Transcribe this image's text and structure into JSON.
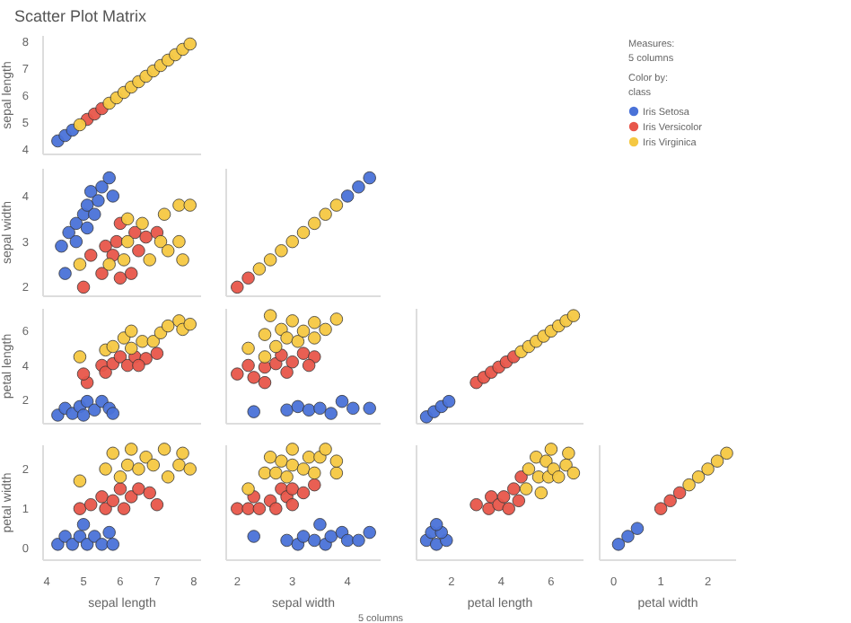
{
  "chart_data": [
    {
      "type": "scatter",
      "title": "Scatter Plot Matrix",
      "ylabel": "sepal length",
      "legend": "right",
      "marker": "circle",
      "tick_labels": "y",
      "annotations": [
        "Measures:",
        "5 columns",
        "Color by:",
        "class"
      ],
      "xlim": [
        3.9,
        8.2
      ],
      "ylim": [
        3.8,
        8.2
      ],
      "yticks": [
        4,
        5,
        6,
        7,
        8
      ],
      "series": [
        {
          "name": "Iris Setosa",
          "color": "#4a72d8",
          "x": [
            4.3,
            4.5,
            4.7
          ],
          "values": [
            4.3,
            4.5,
            4.7
          ]
        },
        {
          "name": "Iris Versicolor",
          "color": "#e8564a",
          "x": [
            5.1,
            5.3,
            5.5
          ],
          "values": [
            5.1,
            5.3,
            5.5
          ]
        },
        {
          "name": "Iris Virginica",
          "color": "#f5c842",
          "x": [
            4.9,
            5.7,
            5.9,
            6.1,
            6.3,
            6.5,
            6.7,
            6.9,
            7.1,
            7.3,
            7.5,
            7.7,
            7.9
          ],
          "values": [
            4.9,
            5.7,
            5.9,
            6.1,
            6.3,
            6.5,
            6.7,
            6.9,
            7.1,
            7.3,
            7.5,
            7.7,
            7.9
          ]
        }
      ]
    },
    {
      "type": "scatter",
      "ylabel": "sepal width",
      "marker": "circle",
      "tick_labels": "y",
      "xlim": [
        3.9,
        8.2
      ],
      "ylim": [
        1.8,
        4.6
      ],
      "yticks": [
        2,
        3,
        4
      ],
      "series": [
        {
          "color": "#4a72d8",
          "x": [
            4.4,
            4.6,
            4.8,
            4.8,
            5.0,
            5.1,
            5.2,
            5.4,
            5.5,
            5.7,
            5.8,
            4.5,
            5.1,
            5.3
          ],
          "values": [
            2.9,
            3.2,
            3.0,
            3.4,
            3.6,
            3.3,
            4.1,
            3.9,
            4.2,
            4.4,
            4.0,
            2.3,
            3.8,
            3.6
          ]
        },
        {
          "color": "#e8564a",
          "x": [
            5.0,
            5.2,
            5.5,
            5.6,
            5.9,
            6.0,
            6.3,
            6.4,
            6.7,
            7.0,
            6.5,
            5.8,
            6.0
          ],
          "values": [
            2.0,
            2.7,
            2.3,
            2.9,
            3.0,
            2.2,
            2.3,
            3.2,
            3.1,
            3.2,
            2.8,
            2.7,
            3.4
          ]
        },
        {
          "color": "#f5c842",
          "x": [
            4.9,
            5.7,
            6.1,
            6.2,
            6.2,
            6.6,
            6.8,
            7.1,
            7.3,
            7.2,
            7.6,
            7.7,
            7.6,
            7.9
          ],
          "values": [
            2.5,
            2.5,
            2.6,
            3.0,
            3.5,
            3.4,
            2.6,
            3.0,
            2.8,
            3.6,
            3.0,
            2.6,
            3.8,
            3.8
          ]
        }
      ]
    },
    {
      "type": "scatter",
      "marker": "circle",
      "tick_labels": false,
      "xlim": [
        1.8,
        4.6
      ],
      "ylim": [
        1.8,
        4.6
      ],
      "series": [
        {
          "color": "#4a72d8",
          "x": [
            4.0,
            4.2,
            4.4
          ],
          "values": [
            4.0,
            4.2,
            4.4
          ]
        },
        {
          "color": "#e8564a",
          "x": [
            2.0,
            2.2
          ],
          "values": [
            2.0,
            2.2
          ]
        },
        {
          "color": "#f5c842",
          "x": [
            2.4,
            2.6,
            2.8,
            3.0,
            3.2,
            3.4,
            3.6,
            3.8
          ],
          "values": [
            2.4,
            2.6,
            2.8,
            3.0,
            3.2,
            3.4,
            3.6,
            3.8
          ]
        }
      ]
    },
    {
      "type": "scatter",
      "ylabel": "petal length",
      "marker": "circle",
      "tick_labels": "y",
      "xlim": [
        3.9,
        8.2
      ],
      "ylim": [
        0.6,
        7.3
      ],
      "yticks": [
        2,
        4,
        6
      ],
      "series": [
        {
          "color": "#4a72d8",
          "x": [
            4.3,
            4.5,
            4.7,
            4.9,
            5.0,
            5.1,
            5.3,
            5.5,
            5.7,
            5.8
          ],
          "values": [
            1.1,
            1.5,
            1.2,
            1.6,
            1.1,
            1.9,
            1.4,
            1.9,
            1.5,
            1.2
          ]
        },
        {
          "color": "#e8564a",
          "x": [
            5.1,
            5.0,
            5.5,
            5.6,
            5.8,
            6.0,
            6.2,
            6.4,
            6.7,
            7.0,
            6.5
          ],
          "values": [
            3.0,
            3.5,
            4.0,
            3.6,
            4.1,
            4.5,
            4.0,
            4.5,
            4.4,
            4.7,
            4.0
          ]
        },
        {
          "color": "#f5c842",
          "x": [
            4.9,
            5.6,
            5.8,
            6.1,
            6.3,
            6.3,
            6.6,
            6.9,
            7.1,
            7.3,
            7.6,
            7.7,
            7.9
          ],
          "values": [
            4.5,
            4.9,
            5.1,
            5.6,
            5.0,
            6.0,
            5.4,
            5.4,
            5.9,
            6.3,
            6.6,
            6.1,
            6.4
          ]
        }
      ]
    },
    {
      "type": "scatter",
      "marker": "circle",
      "tick_labels": false,
      "xlim": [
        1.8,
        4.6
      ],
      "ylim": [
        0.6,
        7.3
      ],
      "series": [
        {
          "color": "#4a72d8",
          "x": [
            2.3,
            2.9,
            3.1,
            3.3,
            3.5,
            3.7,
            3.9,
            4.1,
            4.4
          ],
          "values": [
            1.3,
            1.4,
            1.6,
            1.4,
            1.5,
            1.2,
            1.9,
            1.5,
            1.5
          ]
        },
        {
          "color": "#e8564a",
          "x": [
            2.0,
            2.2,
            2.3,
            2.5,
            2.5,
            2.7,
            2.8,
            2.9,
            3.0,
            3.2,
            3.4,
            3.3
          ],
          "values": [
            3.5,
            4.0,
            3.3,
            3.0,
            3.9,
            4.1,
            4.6,
            3.6,
            4.2,
            4.7,
            4.5,
            4.0
          ]
        },
        {
          "color": "#f5c842",
          "x": [
            2.2,
            2.5,
            2.5,
            2.6,
            2.7,
            2.8,
            2.9,
            3.0,
            3.1,
            3.2,
            3.4,
            3.6,
            3.8,
            3.4
          ],
          "values": [
            5.0,
            4.5,
            5.8,
            6.9,
            5.1,
            6.1,
            5.6,
            6.6,
            5.4,
            6.0,
            5.6,
            6.1,
            6.7,
            6.5
          ]
        }
      ]
    },
    {
      "type": "scatter",
      "marker": "circle",
      "tick_labels": false,
      "xlim": [
        0.6,
        7.3
      ],
      "ylim": [
        0.6,
        7.3
      ],
      "series": [
        {
          "color": "#4a72d8",
          "x": [
            1.0,
            1.3,
            1.6,
            1.9
          ],
          "values": [
            1.0,
            1.3,
            1.6,
            1.9
          ]
        },
        {
          "color": "#e8564a",
          "x": [
            3.0,
            3.3,
            3.6,
            3.9,
            4.2,
            4.5
          ],
          "values": [
            3.0,
            3.3,
            3.6,
            3.9,
            4.2,
            4.5
          ]
        },
        {
          "color": "#f5c842",
          "x": [
            4.8,
            5.1,
            5.4,
            5.7,
            6.0,
            6.3,
            6.6,
            6.9
          ],
          "values": [
            4.8,
            5.1,
            5.4,
            5.7,
            6.0,
            6.3,
            6.6,
            6.9
          ]
        }
      ]
    },
    {
      "type": "scatter",
      "xlabel": "sepal length",
      "ylabel": "petal width",
      "marker": "circle",
      "xlim": [
        3.9,
        8.2
      ],
      "xticks": [
        4,
        5,
        6,
        7,
        8
      ],
      "ylim": [
        -0.3,
        2.6
      ],
      "yticks": [
        0,
        1,
        2
      ],
      "series": [
        {
          "color": "#4a72d8",
          "x": [
            4.3,
            4.5,
            4.7,
            4.9,
            5.0,
            5.1,
            5.3,
            5.5,
            5.7,
            5.8
          ],
          "values": [
            0.1,
            0.3,
            0.1,
            0.3,
            0.6,
            0.1,
            0.3,
            0.1,
            0.4,
            0.1
          ]
        },
        {
          "color": "#e8564a",
          "x": [
            4.9,
            5.2,
            5.5,
            5.6,
            5.8,
            6.0,
            6.1,
            6.3,
            6.5,
            6.8,
            7.0
          ],
          "values": [
            1.0,
            1.1,
            1.3,
            1.0,
            1.2,
            1.5,
            1.0,
            1.3,
            1.5,
            1.4,
            1.1
          ]
        },
        {
          "color": "#f5c842",
          "x": [
            4.9,
            5.6,
            5.8,
            6.0,
            6.3,
            6.2,
            6.5,
            6.7,
            6.9,
            7.2,
            7.3,
            7.6,
            7.7,
            7.9
          ],
          "values": [
            1.7,
            2.0,
            2.4,
            1.8,
            2.5,
            2.1,
            2.0,
            2.3,
            2.1,
            2.5,
            1.8,
            2.1,
            2.4,
            2.0
          ]
        }
      ]
    },
    {
      "type": "scatter",
      "xlabel": "sepal width",
      "marker": "circle",
      "tick_labels": "x",
      "annotations": [
        "5 columns"
      ],
      "xlim": [
        1.8,
        4.6
      ],
      "xticks": [
        2,
        3,
        4
      ],
      "ylim": [
        -0.3,
        2.6
      ],
      "series": [
        {
          "color": "#4a72d8",
          "x": [
            2.3,
            2.9,
            3.1,
            3.2,
            3.4,
            3.5,
            3.6,
            3.7,
            3.9,
            4.0,
            4.2,
            4.4
          ],
          "values": [
            0.3,
            0.2,
            0.1,
            0.3,
            0.2,
            0.6,
            0.1,
            0.3,
            0.4,
            0.2,
            0.2,
            0.4
          ]
        },
        {
          "color": "#e8564a",
          "x": [
            2.0,
            2.2,
            2.3,
            2.4,
            2.6,
            2.7,
            2.8,
            2.9,
            3.0,
            3.0,
            3.2,
            3.4
          ],
          "values": [
            1.0,
            1.0,
            1.3,
            1.0,
            1.2,
            1.0,
            1.5,
            1.3,
            1.5,
            1.1,
            1.4,
            1.6
          ]
        },
        {
          "color": "#f5c842",
          "x": [
            2.2,
            2.5,
            2.6,
            2.7,
            2.8,
            2.9,
            3.0,
            3.0,
            3.2,
            3.3,
            3.5,
            3.6,
            3.8,
            3.8,
            3.4
          ],
          "values": [
            1.5,
            1.9,
            2.3,
            1.9,
            2.2,
            1.8,
            2.1,
            2.5,
            2.0,
            2.3,
            2.3,
            2.5,
            1.9,
            2.2,
            1.9
          ]
        }
      ]
    },
    {
      "type": "scatter",
      "xlabel": "petal length",
      "marker": "circle",
      "tick_labels": "x",
      "xlim": [
        0.6,
        7.3
      ],
      "xticks": [
        2,
        4,
        6
      ],
      "ylim": [
        -0.3,
        2.6
      ],
      "series": [
        {
          "color": "#4a72d8",
          "x": [
            1.0,
            1.4,
            1.8,
            1.2,
            1.6,
            1.4
          ],
          "values": [
            0.2,
            0.1,
            0.2,
            0.4,
            0.4,
            0.6
          ]
        },
        {
          "color": "#e8564a",
          "x": [
            3.0,
            3.5,
            3.6,
            3.9,
            4.1,
            4.3,
            4.5,
            4.7,
            4.8
          ],
          "values": [
            1.1,
            1.0,
            1.3,
            1.1,
            1.3,
            1.0,
            1.5,
            1.2,
            1.8
          ]
        },
        {
          "color": "#f5c842",
          "x": [
            5.0,
            5.1,
            5.4,
            5.5,
            5.6,
            5.8,
            5.9,
            6.0,
            6.1,
            6.3,
            6.6,
            6.7,
            6.9
          ],
          "values": [
            1.5,
            2.0,
            2.3,
            1.8,
            1.4,
            2.2,
            1.8,
            2.5,
            2.0,
            1.8,
            2.1,
            2.4,
            1.9
          ]
        }
      ]
    },
    {
      "type": "scatter",
      "xlabel": "petal width",
      "marker": "circle",
      "tick_labels": "x",
      "xlim": [
        -0.3,
        2.6
      ],
      "xticks": [
        0,
        1,
        2
      ],
      "ylim": [
        -0.3,
        2.6
      ],
      "series": [
        {
          "color": "#4a72d8",
          "x": [
            0.1,
            0.3,
            0.5
          ],
          "values": [
            0.1,
            0.3,
            0.5
          ]
        },
        {
          "color": "#e8564a",
          "x": [
            1.0,
            1.2,
            1.4
          ],
          "values": [
            1.0,
            1.2,
            1.4
          ]
        },
        {
          "color": "#f5c842",
          "x": [
            1.6,
            1.8,
            2.0,
            2.2,
            2.4
          ],
          "values": [
            1.6,
            1.8,
            2.0,
            2.2,
            2.4
          ]
        }
      ]
    }
  ]
}
